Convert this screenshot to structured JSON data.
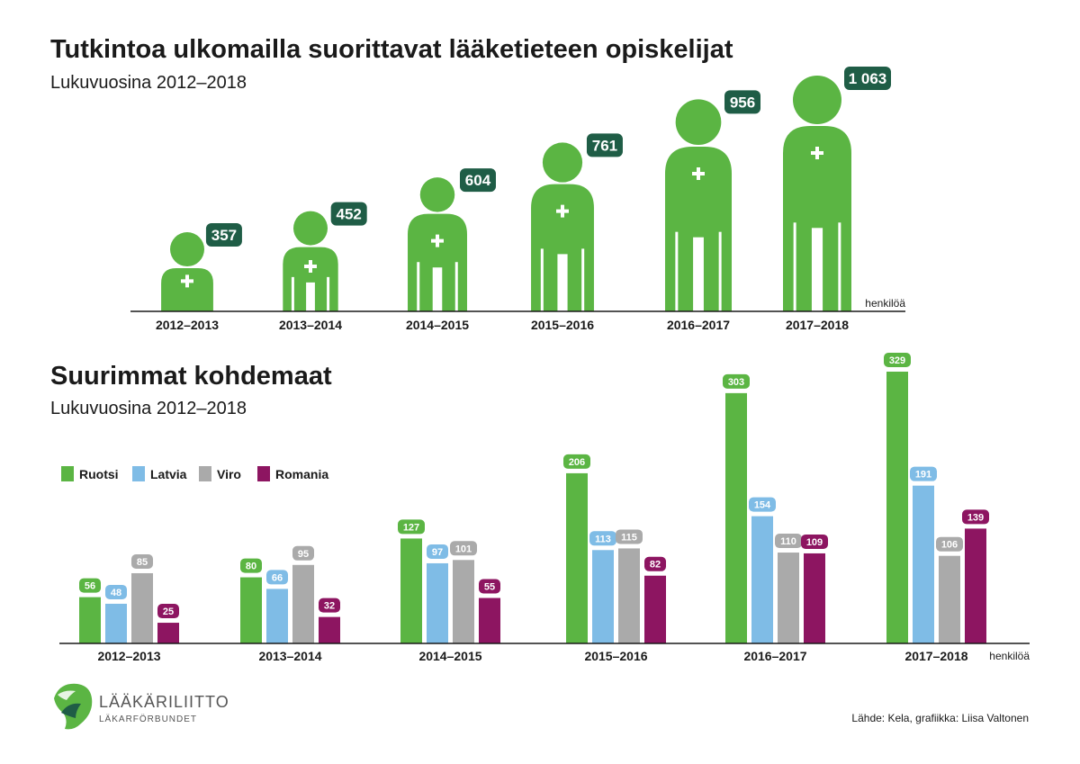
{
  "chart_data": [
    {
      "type": "bar",
      "title": "Tutkintoa ulkomailla suorittavat lääketieteen opiskelijat",
      "subtitle": "Lukuvuosina 2012–2018",
      "unit_label": "henkilöä",
      "categories": [
        "2012–2013",
        "2013–2014",
        "2014–2015",
        "2015–2016",
        "2016–2017",
        "2017–2018"
      ],
      "values": [
        357,
        452,
        604,
        761,
        956,
        1063
      ],
      "value_labels": [
        "357",
        "452",
        "604",
        "761",
        "956",
        "1 063"
      ],
      "mark": "person-pictogram",
      "mark_color": "#5bb543",
      "label_color": "#1f5d46"
    },
    {
      "type": "bar",
      "title": "Suurimmat kohdemaat",
      "subtitle": "Lukuvuosina 2012–2018",
      "unit_label": "henkilöä",
      "categories": [
        "2012–2013",
        "2013–2014",
        "2014–2015",
        "2015–2016",
        "2016–2017",
        "2017–2018"
      ],
      "series": [
        {
          "name": "Ruotsi",
          "color": "#5bb543",
          "values": [
            56,
            80,
            127,
            206,
            303,
            329
          ]
        },
        {
          "name": "Latvia",
          "color": "#7fbce6",
          "values": [
            48,
            66,
            97,
            113,
            154,
            191
          ]
        },
        {
          "name": "Viro",
          "color": "#aaaaaa",
          "values": [
            85,
            95,
            101,
            115,
            110,
            106
          ]
        },
        {
          "name": "Romania",
          "color": "#8d1561",
          "values": [
            25,
            32,
            55,
            82,
            109,
            139
          ]
        }
      ],
      "legend": "top-left",
      "grid": false
    }
  ],
  "footer": {
    "logo_name": "LÄÄKÄRILIITTO",
    "logo_subname": "LÄKARFÖRBUNDET",
    "source": "Lähde: Kela, grafiikka: Liisa Valtonen"
  }
}
